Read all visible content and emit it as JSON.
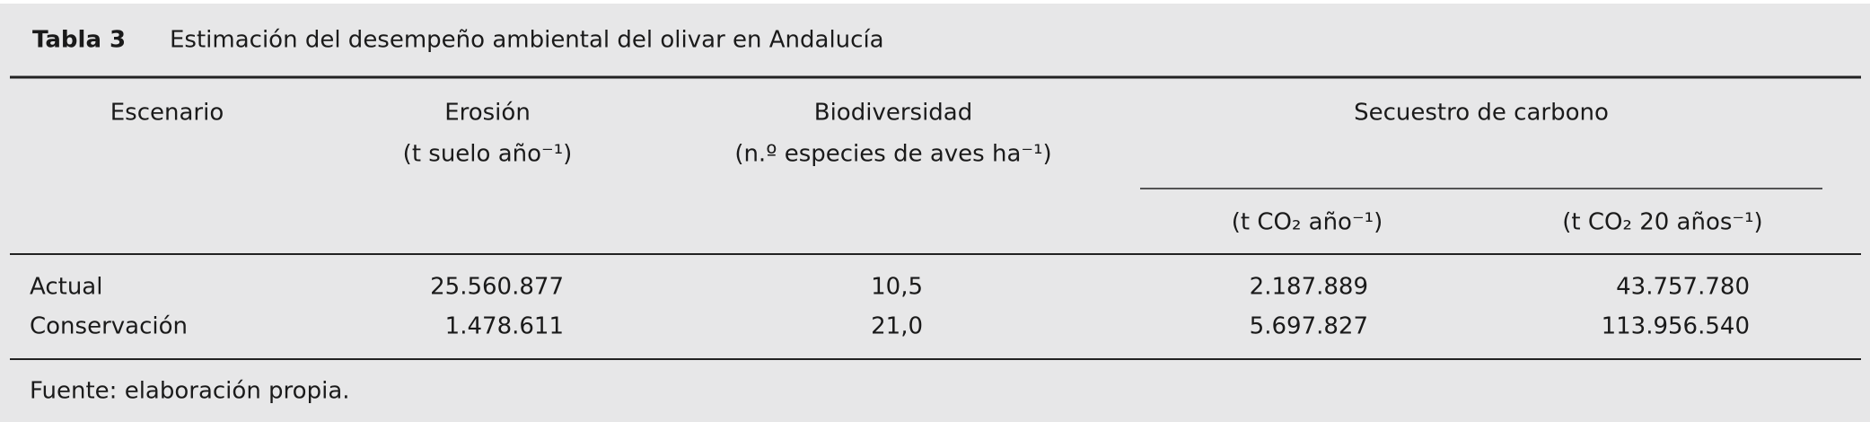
{
  "header": {
    "label": "Tabla 3",
    "title": "Estimación del desempeño ambiental del olivar en Andalucía"
  },
  "table": {
    "headers": [
      {
        "label": "Escenario"
      },
      {
        "label": "Erosión",
        "unit": "(t suelo año⁻¹)"
      },
      {
        "label": "Biodiversidad",
        "unit": "(n.º especies de aves ha⁻¹)"
      },
      {
        "label": "Secuestro de carbono",
        "subunits": [
          "(t CO₂ año⁻¹)",
          "(t CO₂ 20 años⁻¹)"
        ]
      }
    ],
    "rows": [
      [
        "Actual",
        "25.560.877",
        "10,5",
        "2.187.889",
        "43.757.780"
      ],
      [
        "Conservación",
        "1.478.611",
        "21,0",
        "5.697.827",
        "113.956.540"
      ]
    ]
  },
  "footer": "Fuente: elaboración propia."
}
